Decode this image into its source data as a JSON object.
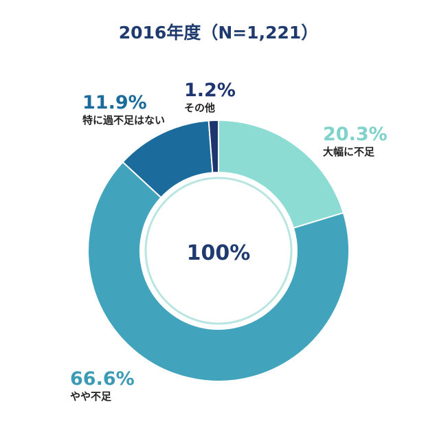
{
  "title": "2016年度（N=1,221）",
  "chart_data": {
    "type": "pie",
    "title": "2016年度（N=1,221）",
    "center_label": "100%",
    "start": "12 o'clock",
    "direction": "clockwise",
    "slices": [
      {
        "label": "大幅に不足",
        "value": 20.3,
        "value_label": "20.3%",
        "color": "#8cdcd4",
        "label_color": "#7fd3cb"
      },
      {
        "label": "やや不足",
        "value": 66.6,
        "value_label": "66.6%",
        "color": "#42a4bc",
        "label_color": "#3c9bb4"
      },
      {
        "label": "特に過不足はない",
        "value": 11.9,
        "value_label": "11.9%",
        "color": "#1b6b9c",
        "label_color": "#1b6b9c"
      },
      {
        "label": "その他",
        "value": 1.2,
        "value_label": "1.2%",
        "color": "#1e3570",
        "label_color": "#1e3570"
      }
    ],
    "inner_ring_color": "#b9e5e1"
  }
}
